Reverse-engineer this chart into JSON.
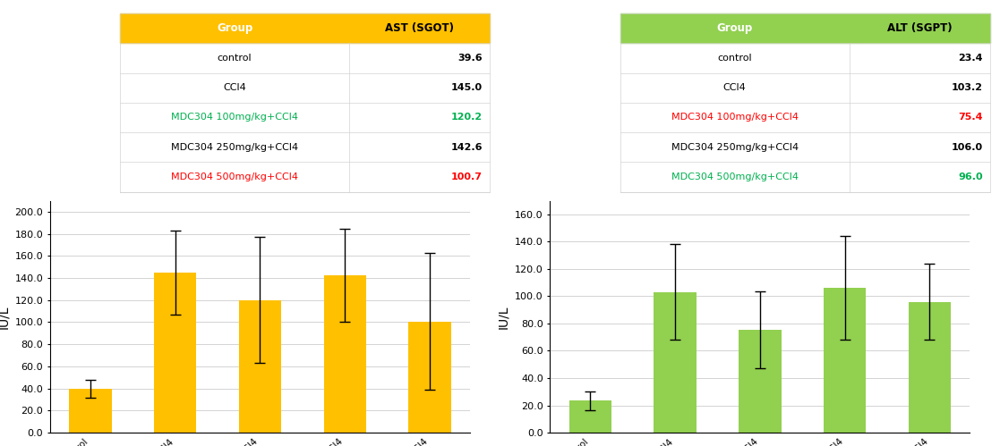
{
  "ast_groups": [
    "control",
    "CCl4",
    "MDC304 100mg/kg+CCl4",
    "MDC304 250mg/kg+CCl4",
    "MDC304 500mg/kg+CCl4"
  ],
  "ast_values": [
    39.6,
    145.0,
    120.2,
    142.6,
    100.7
  ],
  "ast_errors": [
    8,
    38,
    57,
    42,
    62
  ],
  "alt_groups": [
    "control",
    "CCl4",
    "MDC304 100mg/kg+CCl4",
    "MDC304 250mg/kg+CCl4",
    "MDC304 500mg/kg+CCl4"
  ],
  "alt_values": [
    23.4,
    103.2,
    75.4,
    106.0,
    96.0
  ],
  "alt_errors": [
    7,
    35,
    28,
    38,
    28
  ],
  "ast_bar_color": "#FFC000",
  "alt_bar_color": "#92D050",
  "ast_header_color": "#FFC000",
  "alt_header_color": "#92D050",
  "ast_row_colors": [
    "black",
    "black",
    "#00B050",
    "black",
    "#FF0000"
  ],
  "alt_row_colors": [
    "black",
    "black",
    "#FF0000",
    "black",
    "#00B050"
  ],
  "ast_value_colors": [
    "black",
    "black",
    "#00B050",
    "black",
    "#FF0000"
  ],
  "alt_value_colors": [
    "black",
    "black",
    "#FF0000",
    "black",
    "#00B050"
  ],
  "ast_ylabel": "IU/L",
  "alt_ylabel": "IU/L",
  "ast_ylim": [
    0,
    210
  ],
  "alt_ylim": [
    0,
    170
  ],
  "ast_yticks": [
    0.0,
    20.0,
    40.0,
    60.0,
    80.0,
    100.0,
    120.0,
    140.0,
    160.0,
    180.0,
    200.0
  ],
  "alt_yticks": [
    0.0,
    20.0,
    40.0,
    60.0,
    80.0,
    100.0,
    120.0,
    140.0,
    160.0
  ],
  "ast_table_col1": "Group",
  "ast_table_col2": "AST (SGOT)",
  "alt_table_col1": "Group",
  "alt_table_col2": "ALT (SGPT)"
}
